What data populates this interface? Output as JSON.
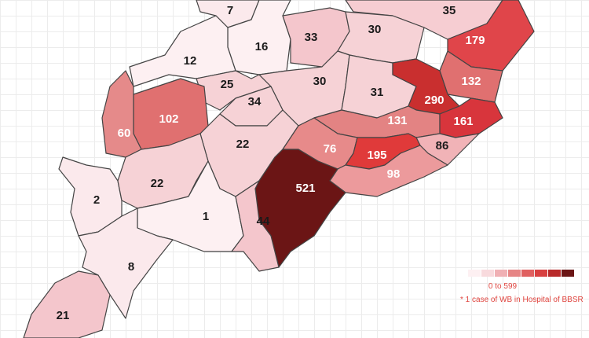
{
  "regions": [
    {
      "value": 7,
      "color": "#fbe9ec"
    },
    {
      "value": 35,
      "color": "#f6cdd2"
    },
    {
      "value": 179,
      "color": "#e0454a"
    },
    {
      "value": 16,
      "color": "#fdf0f2"
    },
    {
      "value": 33,
      "color": "#f4c6cc"
    },
    {
      "value": 30,
      "color": "#f6d2d6"
    },
    {
      "value": 12,
      "color": "#fdf0f2"
    },
    {
      "value": 25,
      "color": "#f6d2d6"
    },
    {
      "value": 30,
      "color": "#f6d2d6"
    },
    {
      "value": 31,
      "color": "#f6d2d6"
    },
    {
      "value": 132,
      "color": "#e07070"
    },
    {
      "value": 290,
      "color": "#c92f2f"
    },
    {
      "value": 34,
      "color": "#f6d2d6"
    },
    {
      "value": 102,
      "color": "#e07070"
    },
    {
      "value": 60,
      "color": "#e58a8a"
    },
    {
      "value": 131,
      "color": "#e38383"
    },
    {
      "value": 161,
      "color": "#d8353c"
    },
    {
      "value": 22,
      "color": "#f6d2d6"
    },
    {
      "value": 76,
      "color": "#e78a8a"
    },
    {
      "value": 86,
      "color": "#f1b3b7"
    },
    {
      "value": 195,
      "color": "#e03a3a"
    },
    {
      "value": 98,
      "color": "#ec9a9c"
    },
    {
      "value": 521,
      "color": "#6b1515"
    },
    {
      "value": 2,
      "color": "#fbe9ec"
    },
    {
      "value": 22,
      "color": "#f6d2d6"
    },
    {
      "value": 1,
      "color": "#fdf0f2"
    },
    {
      "value": 44,
      "color": "#f4c6cc"
    },
    {
      "value": 8,
      "color": "#fbe9ec"
    },
    {
      "value": 21,
      "color": "#f4c6cc"
    }
  ],
  "legend": {
    "label": "0 to 599",
    "note": "* 1 case of WB in Hospital of BBSR",
    "colors": [
      "#fdf0f2",
      "#f8dadd",
      "#f0b0b4",
      "#e68585",
      "#e06060",
      "#d84040",
      "#b82a2a",
      "#6b1515"
    ]
  }
}
